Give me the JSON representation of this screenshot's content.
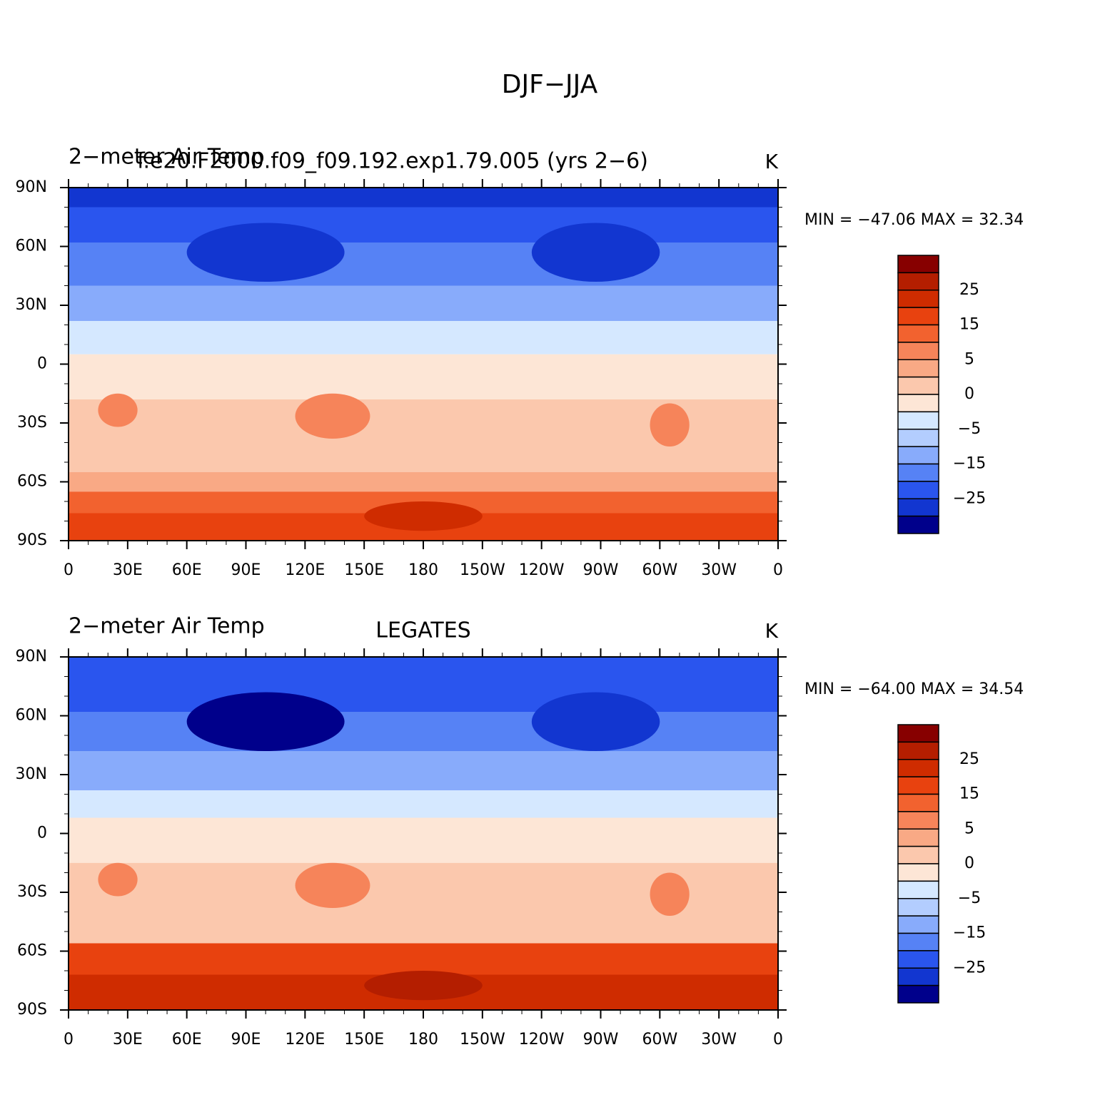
{
  "title": "DJF−JJA",
  "xticks": [
    "0",
    "30E",
    "60E",
    "90E",
    "120E",
    "150E",
    "180",
    "150W",
    "120W",
    "90W",
    "60W",
    "30W",
    "0"
  ],
  "yticks": [
    "90N",
    "60N",
    "30N",
    "0",
    "30S",
    "60S",
    "90S"
  ],
  "cbar_colors": [
    "#870000",
    "#b41e00",
    "#cf2c00",
    "#e8420f",
    "#f2622f",
    "#f6845a",
    "#f9a985",
    "#fbc8ad",
    "#fde6d6",
    "#d5e8ff",
    "#b3cdfe",
    "#88abfb",
    "#5682f5",
    "#2a55ee",
    "#1236d0",
    "#00008b"
  ],
  "cbar_ticks": [
    25,
    15,
    5,
    0,
    -5,
    -15,
    -25
  ],
  "panels": [
    {
      "left": "2−meter Air Temp",
      "center": "f.e20.F2000.f09_f09.192.exp1.79.005 (yrs 2−6)",
      "right": "K",
      "minmax": "MIN = −47.06 MAX =  32.34"
    },
    {
      "left": "2−meter Air Temp",
      "center": "LEGATES",
      "right": "K",
      "minmax": "MIN = −64.00 MAX =  34.54"
    }
  ]
}
